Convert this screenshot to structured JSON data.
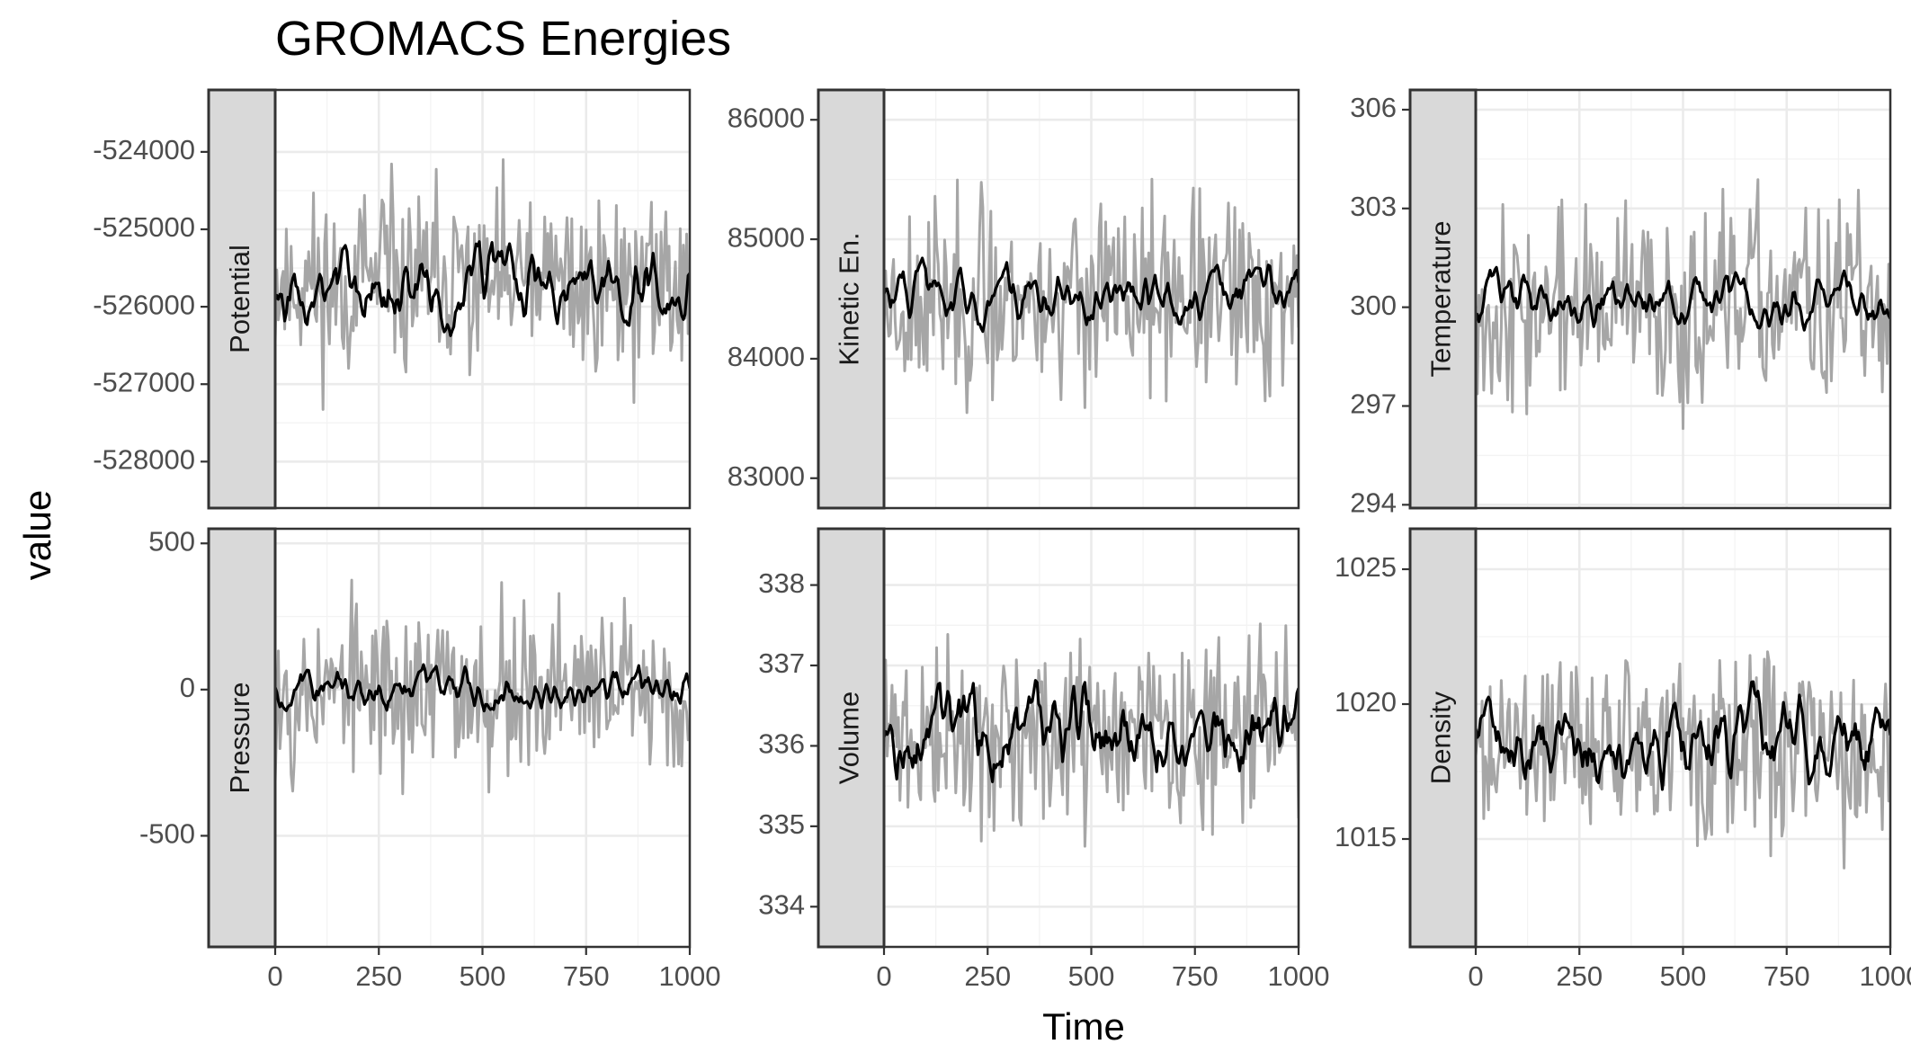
{
  "chart_data": {
    "type": "line",
    "title": "GROMACS Energies",
    "xlabel": "Time",
    "ylabel": "value",
    "facet_layout": "2 rows x 3 columns, strip labels on left, free y scales",
    "xlim": [
      0,
      1000
    ],
    "x_ticks": [
      "0",
      "250",
      "500",
      "750",
      "1000"
    ],
    "series_styles": {
      "raw": "#a6a6a6",
      "smoothed": "#000000",
      "strip_fill": "#d9d9d9",
      "grid": "#ebebeb"
    },
    "panels": [
      {
        "label": "Potential",
        "ylim": [
          -528600,
          -523200
        ],
        "y_ticks": [
          -528000,
          -527000,
          -526000,
          -525000,
          -524000
        ],
        "y_tick_labels": [
          "-528000",
          "-527000",
          "-526000",
          "-525000",
          "-524000"
        ],
        "raw_mean": -525700,
        "raw_spread": 950,
        "smooth_mean": -525750,
        "smooth_spread": 300,
        "seed": 11
      },
      {
        "label": "Kinetic En.",
        "ylim": [
          82750,
          86250
        ],
        "y_ticks": [
          83000,
          84000,
          85000,
          86000
        ],
        "y_tick_labels": [
          "83000",
          "84000",
          "85000",
          "86000"
        ],
        "raw_mean": 84500,
        "raw_spread": 650,
        "smooth_mean": 84540,
        "smooth_spread": 140,
        "seed": 23
      },
      {
        "label": "Temperature",
        "ylim": [
          293.9,
          306.6
        ],
        "y_ticks": [
          294,
          297,
          300,
          303,
          306
        ],
        "y_tick_labels": [
          "294",
          "297",
          "300",
          "303",
          "306"
        ],
        "raw_mean": 300,
        "raw_spread": 2.4,
        "smooth_mean": 300.1,
        "smooth_spread": 0.5,
        "seed": 37
      },
      {
        "label": "Pressure",
        "ylim": [
          -880,
          550
        ],
        "y_ticks": [
          -500,
          0,
          500
        ],
        "y_tick_labels": [
          "-500",
          "0",
          "500"
        ],
        "raw_mean": 0,
        "raw_spread": 240,
        "smooth_mean": 0,
        "smooth_spread": 45,
        "seed": 53
      },
      {
        "label": "Volume",
        "ylim": [
          333.5,
          338.7
        ],
        "y_ticks": [
          334,
          335,
          336,
          337,
          338
        ],
        "y_tick_labels": [
          "334",
          "335",
          "336",
          "337",
          "338"
        ],
        "raw_mean": 336.1,
        "raw_spread": 0.9,
        "smooth_mean": 336.2,
        "smooth_spread": 0.35,
        "seed": 71
      },
      {
        "label": "Density",
        "ylim": [
          1011,
          1026.5
        ],
        "y_ticks": [
          1015,
          1020,
          1025
        ],
        "y_tick_labels": [
          "1015",
          "1020",
          "1025"
        ],
        "raw_mean": 1018.5,
        "raw_spread": 2.8,
        "smooth_mean": 1018.5,
        "smooth_spread": 1.0,
        "seed": 89
      }
    ]
  }
}
